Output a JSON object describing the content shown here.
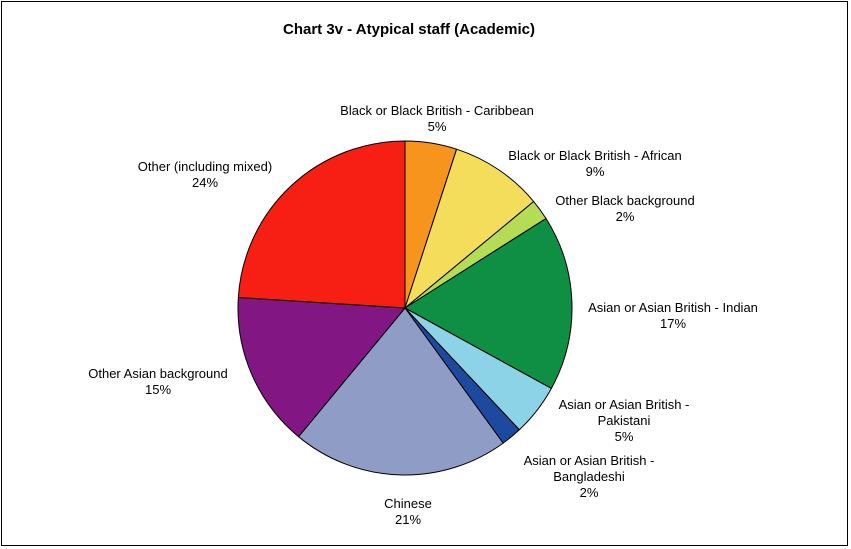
{
  "chart_data": {
    "type": "pie",
    "title": "Chart 3v - Atypical staff (Academic)",
    "slices": [
      {
        "lines": [
          "Black or Black British - Caribbean"
        ],
        "pct_label": "5%",
        "value": 5,
        "color": "#F7941D"
      },
      {
        "lines": [
          "Black or Black British - African"
        ],
        "pct_label": "9%",
        "value": 9,
        "color": "#F5DD5C"
      },
      {
        "lines": [
          "Other Black background"
        ],
        "pct_label": "2%",
        "value": 2,
        "color": "#B5DC55"
      },
      {
        "lines": [
          "Asian or Asian British - Indian"
        ],
        "pct_label": "17%",
        "value": 17,
        "color": "#0E8F44"
      },
      {
        "lines": [
          "Asian or Asian British -",
          "Pakistani"
        ],
        "pct_label": "5%",
        "value": 5,
        "color": "#8DD3E8"
      },
      {
        "lines": [
          "Asian or Asian British -",
          "Bangladeshi"
        ],
        "pct_label": "2%",
        "value": 2,
        "color": "#1D4A9E"
      },
      {
        "lines": [
          "Chinese"
        ],
        "pct_label": "21%",
        "value": 21,
        "color": "#8F9CC6"
      },
      {
        "lines": [
          "Other Asian background"
        ],
        "pct_label": "15%",
        "value": 15,
        "color": "#821783"
      },
      {
        "lines": [
          "Other (including mixed)"
        ],
        "pct_label": "24%",
        "value": 24,
        "color": "#F71E13"
      }
    ],
    "start_angle_deg": 0,
    "direction": "clockwise",
    "legend": "none"
  }
}
